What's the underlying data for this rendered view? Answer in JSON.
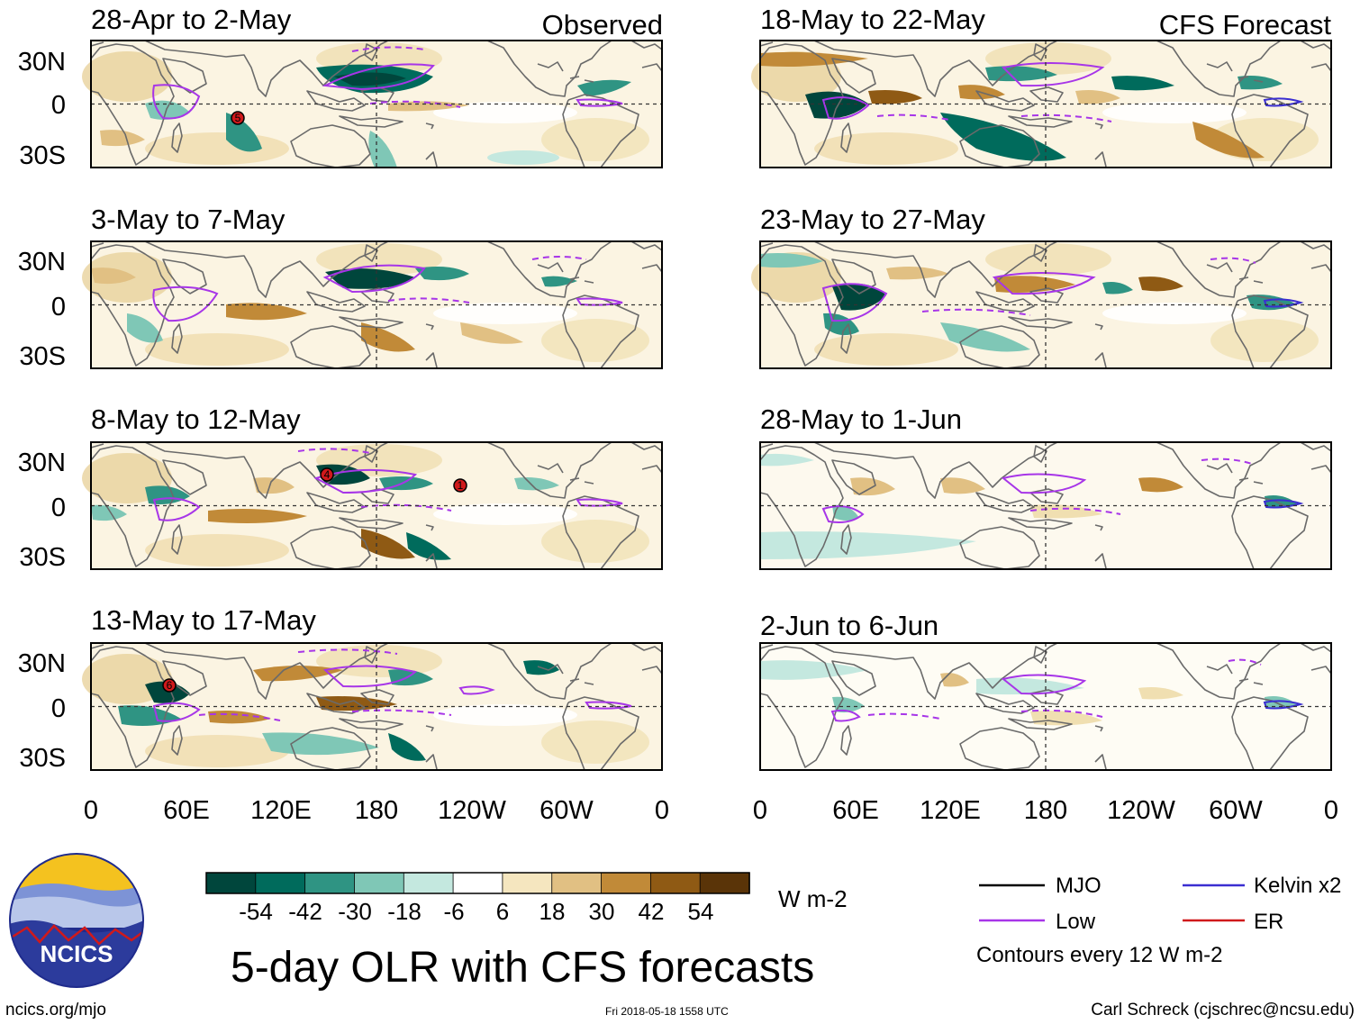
{
  "panels": {
    "p1": {
      "period": "28-Apr to 2-May",
      "tag": "Observed"
    },
    "p2": {
      "period": "3-May to 7-May"
    },
    "p3": {
      "period": "8-May to 12-May"
    },
    "p4": {
      "period": "13-May to 17-May"
    },
    "p5": {
      "period": "18-May to 22-May",
      "tag": "CFS Forecast"
    },
    "p6": {
      "period": "23-May to 27-May"
    },
    "p7": {
      "period": "28-May to 1-Jun"
    },
    "p8": {
      "period": "2-Jun to 6-Jun"
    }
  },
  "axes": {
    "lat_labels": [
      "30N",
      "0",
      "30S"
    ],
    "lon_labels": [
      "0",
      "60E",
      "120E",
      "180",
      "120W",
      "60W",
      "0"
    ]
  },
  "storms": {
    "s1": "5",
    "s2": "4",
    "s3": "1",
    "s4": "6"
  },
  "colorbar": {
    "ticks": [
      "-54",
      "-42",
      "-30",
      "-18",
      "-6",
      "6",
      "18",
      "30",
      "42",
      "54"
    ],
    "units": "W m-2",
    "colors": [
      "#00463c",
      "#006b5c",
      "#2f9483",
      "#7fc7b6",
      "#c4e8df",
      "#ffffff",
      "#f5e6bf",
      "#e1c083",
      "#c18a38",
      "#8f5a14",
      "#5a3408"
    ]
  },
  "legend": {
    "mjo": "MJO",
    "kelvin": "Kelvin x2",
    "low": "Low",
    "er": "ER",
    "note": "Contours every 12 W m-2",
    "colors": {
      "mjo": "#000000",
      "kelvin": "#3b2fd1",
      "low": "#a735e8",
      "er": "#d0191b"
    }
  },
  "title": "5-day OLR with CFS forecasts",
  "logo": {
    "text": "NCICS"
  },
  "footer": {
    "url": "ncics.org/mjo",
    "timestamp": "Fri 2018-05-18 1558 UTC",
    "author": "Carl Schreck (cjschrec@ncsu.edu)"
  }
}
